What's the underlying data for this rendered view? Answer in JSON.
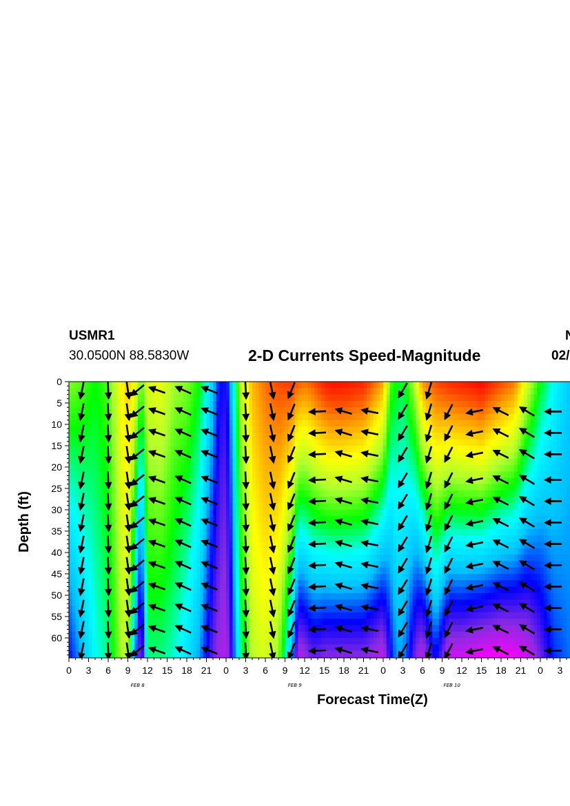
{
  "header": {
    "station": "USMR1",
    "location": "30.0500N 88.5830W",
    "title": "2-D Currents Speed-Magnitude",
    "right_top": "N",
    "right_bottom": "02/"
  },
  "chart_data": {
    "type": "heatmap",
    "title": "2-D Currents Speed-Magnitude",
    "xlabel": "Forecast Time(Z)",
    "ylabel": "Depth (ft)",
    "x_tick_labels": [
      "0",
      "3",
      "6",
      "9",
      "12",
      "15",
      "18",
      "21",
      "0",
      "3",
      "6",
      "9",
      "12",
      "15",
      "18",
      "21",
      "0",
      "3",
      "6",
      "9",
      "12",
      "15",
      "18",
      "21",
      "0",
      "3"
    ],
    "x_hours": [
      0,
      3,
      6,
      9,
      12,
      15,
      18,
      21,
      24,
      27,
      30,
      33,
      36,
      39,
      42,
      45,
      48,
      51,
      54,
      57,
      60,
      63,
      66,
      69,
      72,
      75
    ],
    "x_range": [
      0,
      76.5
    ],
    "date_labels": [
      {
        "label": "FEB 8",
        "hour": 10.5
      },
      {
        "label": "FEB 9",
        "hour": 34.5
      },
      {
        "label": "FEB 10",
        "hour": 58.5
      }
    ],
    "y_ticks": [
      0,
      5,
      10,
      15,
      20,
      25,
      30,
      35,
      40,
      45,
      50,
      55,
      60
    ],
    "y_range": [
      0,
      64.5
    ],
    "y_inverted": true,
    "colormap": [
      "#ff00ff",
      "#8a2be2",
      "#0000ff",
      "#00bfff",
      "#00ffff",
      "#00ff00",
      "#adff2f",
      "#ffff00",
      "#ffa500",
      "#ff4500",
      "#ff0000"
    ],
    "speed_profile": {
      "hours": [
        0,
        2,
        4,
        6,
        8,
        9,
        10,
        11,
        12,
        14,
        16,
        18,
        20,
        22,
        23,
        24,
        25,
        26,
        28,
        30,
        32,
        34,
        35,
        36,
        37,
        38,
        39,
        40,
        42,
        45,
        48,
        49,
        50,
        51,
        52,
        53,
        54,
        56,
        58,
        60,
        62,
        63,
        64,
        66,
        68,
        70,
        72,
        74,
        76.5
      ],
      "surface": [
        0.58,
        0.55,
        0.5,
        0.55,
        0.7,
        0.76,
        0.7,
        0.56,
        0.66,
        0.68,
        0.6,
        0.58,
        0.5,
        0.32,
        0.2,
        0.18,
        0.36,
        0.6,
        0.78,
        0.86,
        0.9,
        0.92,
        0.88,
        0.86,
        0.88,
        0.92,
        0.96,
        0.98,
        0.98,
        0.95,
        0.8,
        0.55,
        0.5,
        0.48,
        0.55,
        0.65,
        0.82,
        0.9,
        0.94,
        0.96,
        0.98,
        1.0,
        0.96,
        0.9,
        0.85,
        0.65,
        0.5,
        0.4,
        0.32
      ],
      "bottom": [
        0.2,
        0.3,
        0.4,
        0.45,
        0.6,
        0.62,
        0.3,
        0.06,
        0.45,
        0.45,
        0.42,
        0.36,
        0.28,
        0.12,
        0.08,
        0.06,
        0.2,
        0.42,
        0.62,
        0.65,
        0.58,
        0.3,
        0.06,
        0.08,
        0.12,
        0.12,
        0.1,
        0.1,
        0.1,
        0.1,
        0.05,
        0.18,
        0.28,
        0.28,
        0.2,
        0.1,
        0.06,
        0.2,
        0.04,
        0.04,
        0.02,
        0.01,
        0.01,
        0.0,
        0.01,
        0.04,
        0.12,
        0.22,
        0.26
      ]
    },
    "vector_field": {
      "description": "current direction arrows (dx, dy in screen sense; dy positive = downward/south)",
      "rows_depth_ft": [
        2,
        7,
        12,
        17,
        23,
        28,
        33,
        38,
        43,
        48,
        53,
        58,
        63
      ],
      "columns": [
        {
          "hour": 2,
          "depth_from": 0,
          "dx": -0.2,
          "dy": 1.0
        },
        {
          "hour": 6,
          "depth_from": 0,
          "dx": 0.05,
          "dy": 1.0
        },
        {
          "hour": 9,
          "depth_from": 0,
          "dx": 0.15,
          "dy": 1.0
        },
        {
          "hour": 10.5,
          "depth_from": 0,
          "dx": -0.8,
          "dy": 0.65
        },
        {
          "hour": 13.5,
          "depth_from": 0,
          "dx": -1.0,
          "dy": -0.35
        },
        {
          "hour": 17.5,
          "depth_from": 0,
          "dx": -1.0,
          "dy": -0.45
        },
        {
          "hour": 21.5,
          "depth_from": 0,
          "dx": -1.0,
          "dy": -0.4
        },
        {
          "hour": 27,
          "depth_from": 0,
          "dx": 0.05,
          "dy": 1.0
        },
        {
          "hour": 31,
          "depth_from": 0,
          "dx": 0.2,
          "dy": 1.0
        },
        {
          "hour": 34,
          "depth_from": 0,
          "dx": -0.4,
          "dy": 1.0
        },
        {
          "hour": 38,
          "depth_from": 5,
          "dx": -1.0,
          "dy": 0.05
        },
        {
          "hour": 42,
          "depth_from": 5,
          "dx": -1.0,
          "dy": -0.3
        },
        {
          "hour": 46,
          "depth_from": 5,
          "dx": -1.0,
          "dy": -0.2
        },
        {
          "hour": 51,
          "depth_from": 0,
          "dx": -0.6,
          "dy": 1.0
        },
        {
          "hour": 55,
          "depth_from": 0,
          "dx": -0.3,
          "dy": 1.0
        },
        {
          "hour": 58,
          "depth_from": 5,
          "dx": -0.5,
          "dy": 1.0
        },
        {
          "hour": 62,
          "depth_from": 5,
          "dx": -1.0,
          "dy": 0.2
        },
        {
          "hour": 66,
          "depth_from": 5,
          "dx": -1.0,
          "dy": -0.5
        },
        {
          "hour": 70,
          "depth_from": 5,
          "dx": -1.0,
          "dy": -0.6
        },
        {
          "hour": 74,
          "depth_from": 5,
          "dx": -1.0,
          "dy": 0.0
        }
      ]
    }
  }
}
